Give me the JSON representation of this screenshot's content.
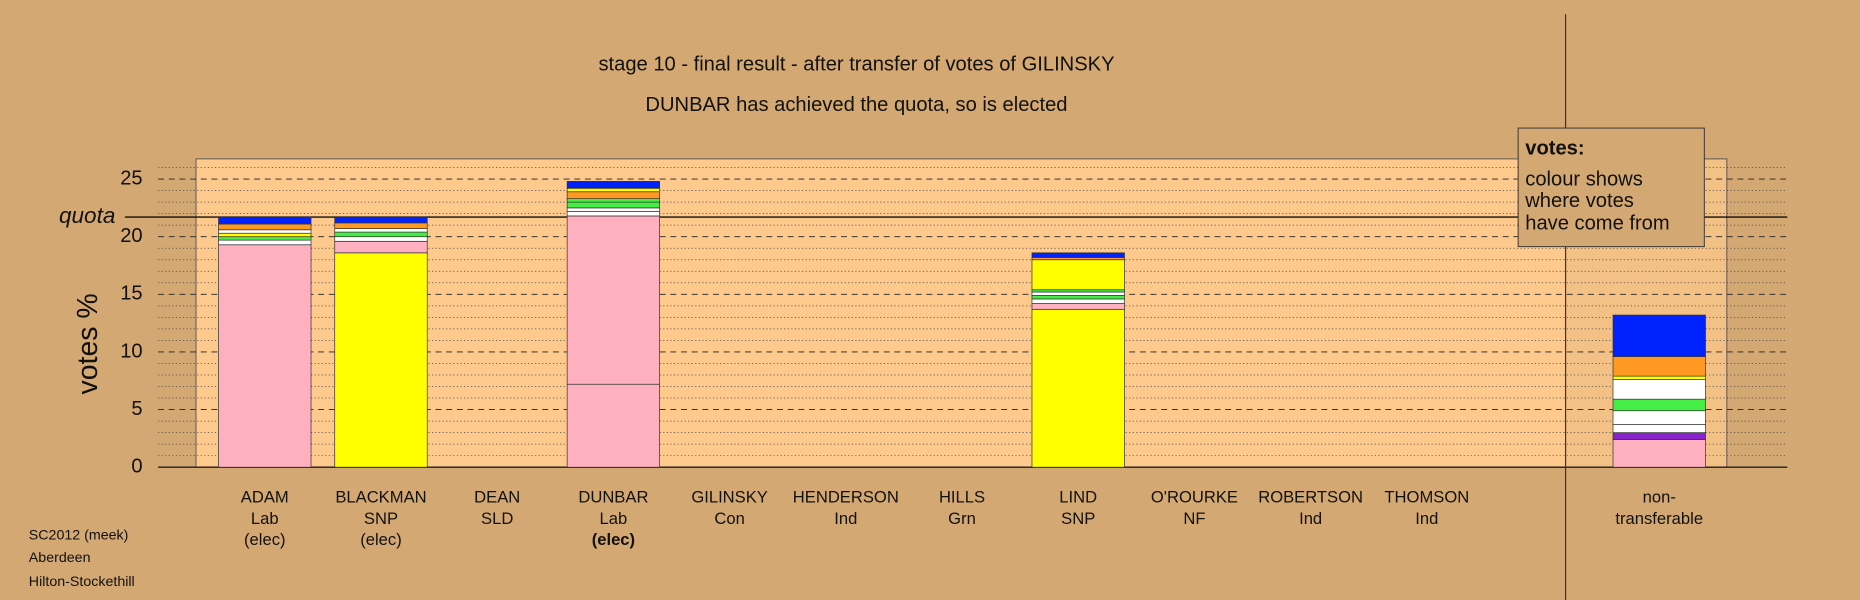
{
  "chart_data": {
    "type": "stacked-bar",
    "title": "stage 10 - final result - after transfer of votes of GILINSKY",
    "subtitle": "DUNBAR has achieved the quota, so is elected",
    "y_label": "votes %",
    "quota_label": "quota",
    "quota": 21.7,
    "ylim": [
      0,
      26.75
    ],
    "yticks": [
      0,
      5,
      10,
      15,
      20,
      25
    ],
    "minor_yticks": [
      1,
      2,
      3,
      4,
      6,
      7,
      8,
      9,
      11,
      12,
      13,
      14,
      16,
      17,
      18,
      19,
      21,
      22,
      23,
      24,
      26
    ],
    "legend": {
      "title": "votes:",
      "lines": [
        "colour shows",
        "where votes",
        "have come from"
      ]
    },
    "footer": [
      "SC2012 (meek)",
      "Aberdeen",
      "Hilton-Stockethill"
    ],
    "categories": [
      {
        "lines": [
          "ADAM",
          "Lab",
          "(elec)"
        ],
        "bold_last": false
      },
      {
        "lines": [
          "BLACKMAN",
          "SNP",
          "(elec)"
        ],
        "bold_last": false
      },
      {
        "lines": [
          "DEAN",
          "SLD"
        ],
        "bold_last": false
      },
      {
        "lines": [
          "DUNBAR",
          "Lab",
          "(elec)"
        ],
        "bold_last": true
      },
      {
        "lines": [
          "GILINSKY",
          "Con"
        ],
        "bold_last": false
      },
      {
        "lines": [
          "HENDERSON",
          "Ind"
        ],
        "bold_last": false
      },
      {
        "lines": [
          "HILLS",
          "Grn"
        ],
        "bold_last": false
      },
      {
        "lines": [
          "LIND",
          "SNP"
        ],
        "bold_last": false
      },
      {
        "lines": [
          "O'ROURKE",
          "NF"
        ],
        "bold_last": false
      },
      {
        "lines": [
          "ROBERTSON",
          "Ind"
        ],
        "bold_last": false
      },
      {
        "lines": [
          "THOMSON",
          "Ind"
        ],
        "bold_last": false
      },
      {
        "lines": [
          "non-",
          "transferable"
        ],
        "bold_last": false
      }
    ],
    "segments": [
      [
        {
          "value": 19.3,
          "color": "#ffb0c0"
        },
        {
          "value": 0.4,
          "color": "#ffffff"
        },
        {
          "value": 0.3,
          "color": "#44ee44"
        },
        {
          "value": 0.3,
          "color": "#ffff00"
        },
        {
          "value": 0.3,
          "color": "#ffffff"
        },
        {
          "value": 0.5,
          "color": "#ff9922"
        },
        {
          "value": 0.6,
          "color": "#0022ff"
        }
      ],
      [
        {
          "value": 18.6,
          "color": "#ffff00"
        },
        {
          "value": 1.0,
          "color": "#ffb0c0"
        },
        {
          "value": 0.4,
          "color": "#ffffff"
        },
        {
          "value": 0.4,
          "color": "#44ee44"
        },
        {
          "value": 0.3,
          "color": "#ffffff"
        },
        {
          "value": 0.5,
          "color": "#ff9922"
        },
        {
          "value": 0.5,
          "color": "#0022ff"
        }
      ],
      [],
      [
        {
          "value": 7.2,
          "color": "#ffb0c0"
        },
        {
          "value": 14.6,
          "color": "#ffb0c0"
        },
        {
          "value": 0.4,
          "color": "#ffffff"
        },
        {
          "value": 0.3,
          "color": "#ffffff"
        },
        {
          "value": 0.5,
          "color": "#44ee44"
        },
        {
          "value": 0.3,
          "color": "#44ee44"
        },
        {
          "value": 0.6,
          "color": "#ff9922"
        },
        {
          "value": 0.3,
          "color": "#ffff00"
        },
        {
          "value": 0.6,
          "color": "#0022ff"
        }
      ],
      [],
      [],
      [],
      [
        {
          "value": 13.7,
          "color": "#ffff00"
        },
        {
          "value": 0.5,
          "color": "#ffb0c0"
        },
        {
          "value": 0.4,
          "color": "#ffffff"
        },
        {
          "value": 0.3,
          "color": "#44ee44"
        },
        {
          "value": 0.3,
          "color": "#ffffff"
        },
        {
          "value": 0.2,
          "color": "#44ee44"
        },
        {
          "value": 2.6,
          "color": "#ffff00"
        },
        {
          "value": 0.2,
          "color": "#ff9922"
        },
        {
          "value": 0.4,
          "color": "#0022ff"
        }
      ],
      [],
      [],
      [],
      [
        {
          "value": 2.4,
          "color": "#ffb0c0"
        },
        {
          "value": 0.6,
          "color": "#8822cc"
        },
        {
          "value": 0.7,
          "color": "#ffffff"
        },
        {
          "value": 1.2,
          "color": "#ffffff"
        },
        {
          "value": 1.0,
          "color": "#44ee44"
        },
        {
          "value": 1.7,
          "color": "#ffffff"
        },
        {
          "value": 0.3,
          "color": "#ffff00"
        },
        {
          "value": 1.7,
          "color": "#ff9922"
        },
        {
          "value": 3.6,
          "color": "#0022ff"
        }
      ]
    ]
  }
}
